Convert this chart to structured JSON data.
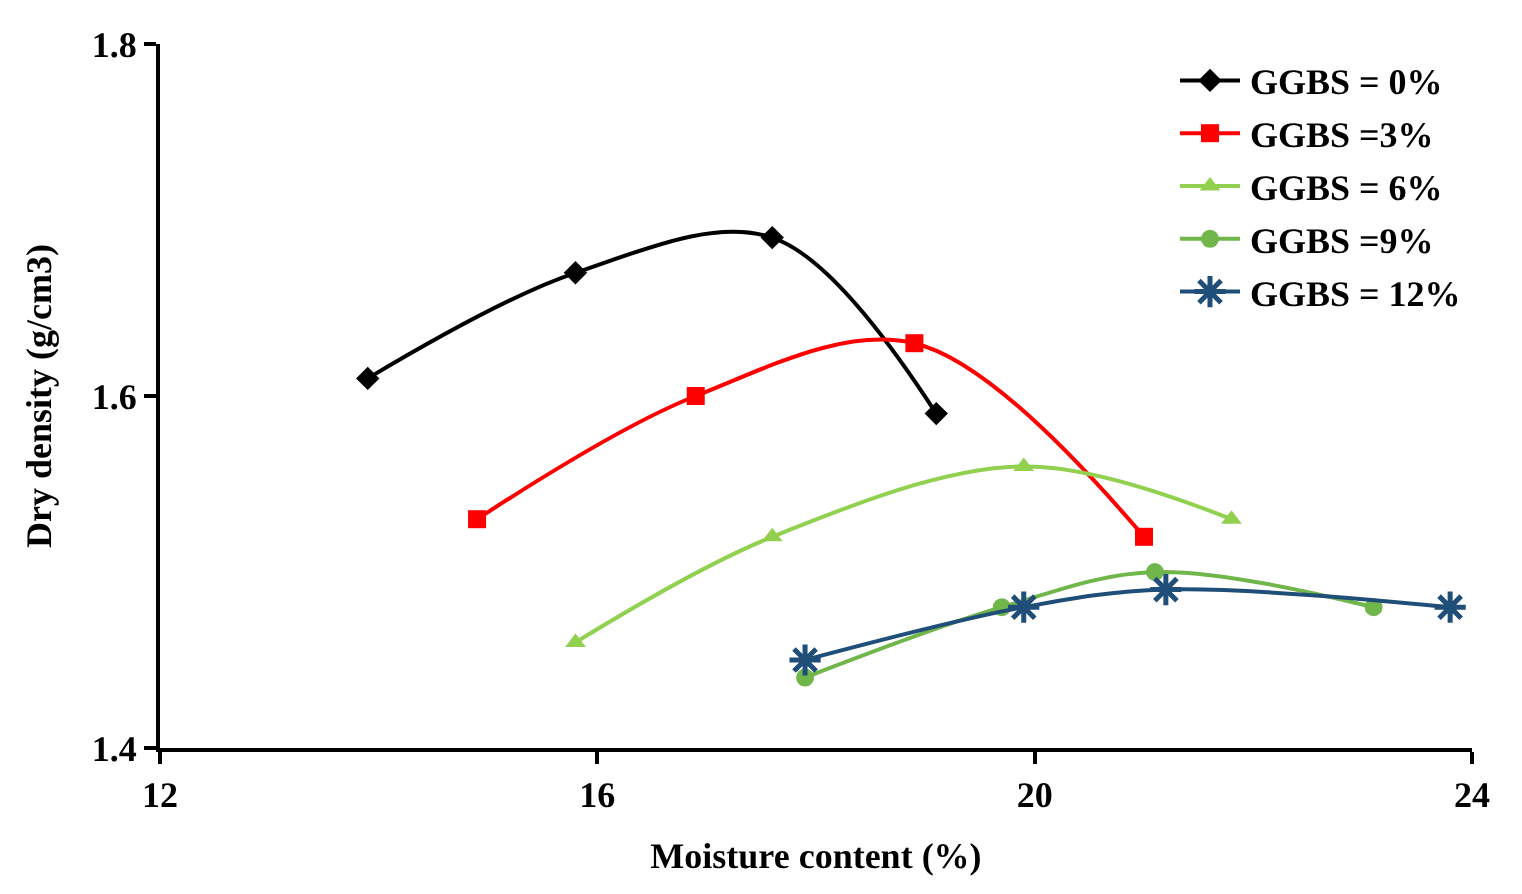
{
  "chart_data": {
    "type": "line",
    "xlabel": "Moisture content (%)",
    "ylabel": "Dry density (g/cm3)",
    "xlim": [
      12,
      24
    ],
    "xticks": [
      12,
      16,
      20,
      24
    ],
    "ylim": [
      1.4,
      1.8
    ],
    "yticks": [
      1.4,
      1.6,
      1.8
    ],
    "legend": "top right",
    "series": [
      {
        "name": "GGBS = 0%",
        "color": "#000000",
        "marker": "diamond",
        "x": [
          13.9,
          15.8,
          17.6,
          19.1
        ],
        "values": [
          1.61,
          1.67,
          1.69,
          1.59
        ]
      },
      {
        "name": "GGBS =3%",
        "color": "#ff0000",
        "marker": "square",
        "x": [
          14.9,
          16.9,
          18.9,
          21.0
        ],
        "values": [
          1.53,
          1.6,
          1.63,
          1.52
        ]
      },
      {
        "name": "GGBS = 6%",
        "color": "#92d050",
        "marker": "triangle",
        "x": [
          15.8,
          17.6,
          19.9,
          21.8
        ],
        "values": [
          1.46,
          1.52,
          1.56,
          1.53
        ]
      },
      {
        "name": "GGBS =9%",
        "color": "#70b64a",
        "marker": "circle",
        "x": [
          17.9,
          19.7,
          21.1,
          23.1
        ],
        "values": [
          1.44,
          1.48,
          1.5,
          1.48
        ]
      },
      {
        "name": "GGBS = 12%",
        "color": "#1f4e79",
        "marker": "cross",
        "x": [
          17.9,
          19.9,
          21.2,
          23.8
        ],
        "values": [
          1.45,
          1.48,
          1.49,
          1.48
        ]
      }
    ]
  }
}
